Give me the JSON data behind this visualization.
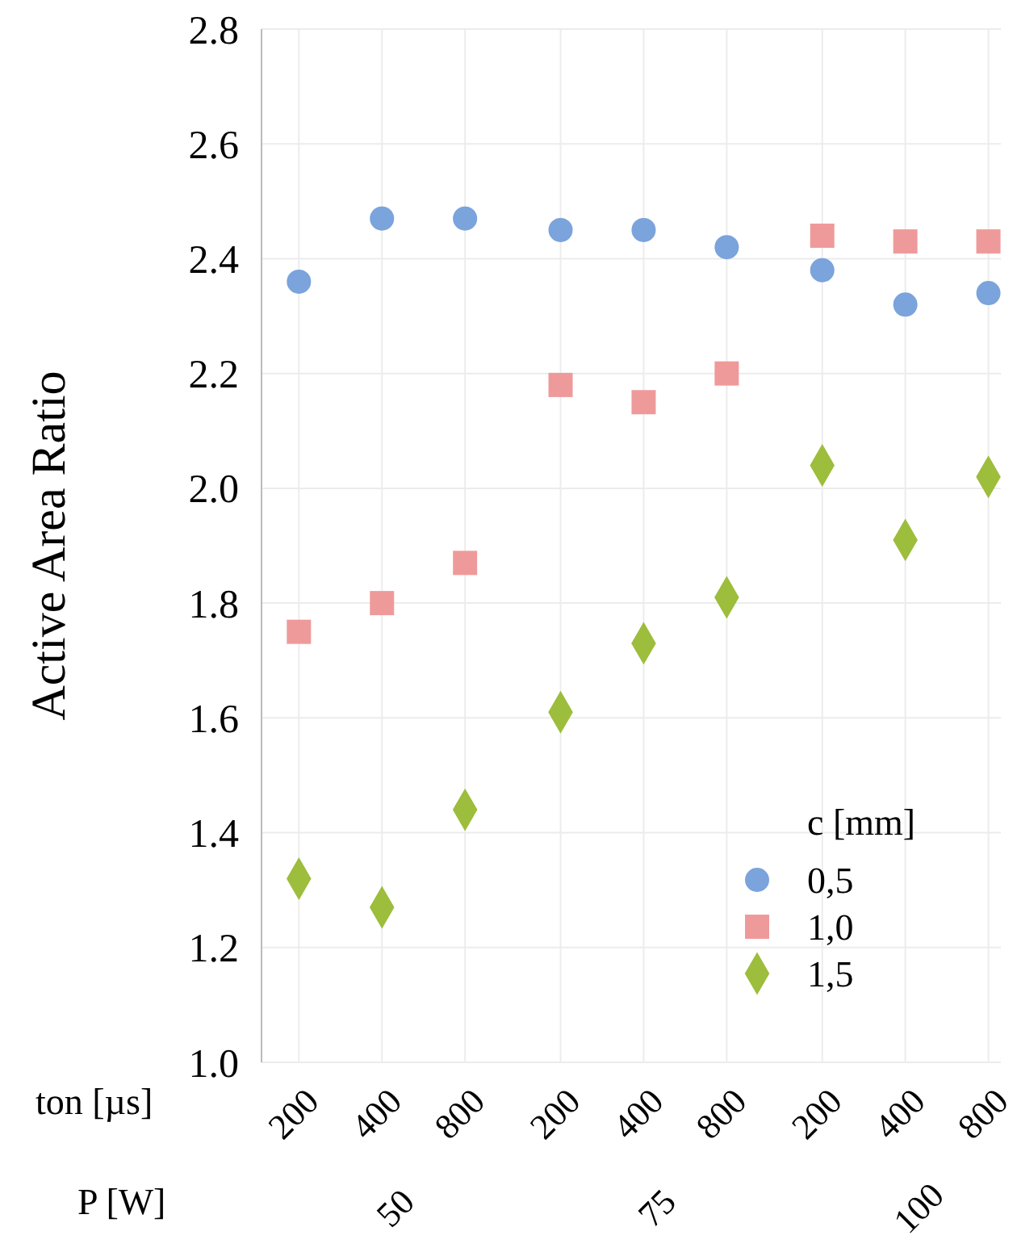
{
  "chart_data": {
    "type": "scatter",
    "ylabel": "Active Area Ratio",
    "xlabel": "ton [µs]",
    "legend_title": "c [mm]",
    "legend": "bottom right",
    "grid": true,
    "categories": [
      "200",
      "400",
      "800",
      "200",
      "400",
      "800",
      "200",
      "400",
      "800"
    ],
    "annotations": [
      "P [W]",
      "50",
      "75",
      "100"
    ],
    "ylim": [
      1.0,
      2.8
    ],
    "yticks": [
      {
        "value": 1.0,
        "label": "1.0"
      },
      {
        "value": 1.2,
        "label": "1.2"
      },
      {
        "value": 1.4,
        "label": "1.4"
      },
      {
        "value": 1.6,
        "label": "1.6"
      },
      {
        "value": 1.8,
        "label": "1.8"
      },
      {
        "value": 2.0,
        "label": "2.0"
      },
      {
        "value": 2.2,
        "label": "2.2"
      },
      {
        "value": 2.4,
        "label": "2.4"
      },
      {
        "value": 2.6,
        "label": "2.6"
      },
      {
        "value": 2.8,
        "label": "2.8"
      }
    ],
    "series": [
      {
        "name": "0,5",
        "color": "#7ba3dc",
        "marker": "circle",
        "values": [
          2.36,
          2.47,
          2.47,
          2.45,
          2.45,
          2.42,
          2.38,
          2.32,
          2.34
        ]
      },
      {
        "name": "1,0",
        "color": "#ef9a9a",
        "marker": "square",
        "values": [
          1.75,
          1.8,
          1.87,
          2.18,
          2.15,
          2.2,
          2.44,
          2.43,
          2.43
        ]
      },
      {
        "name": "1,5",
        "color": "#9dbd3c",
        "marker": "diamond",
        "values": [
          1.32,
          1.27,
          1.44,
          1.61,
          1.73,
          1.81,
          2.04,
          1.91,
          2.02
        ]
      }
    ]
  }
}
